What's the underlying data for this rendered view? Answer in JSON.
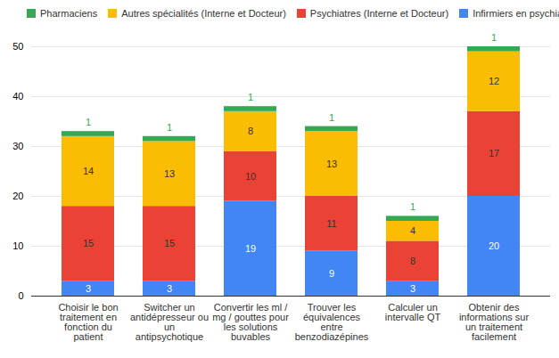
{
  "chart_data": {
    "type": "bar",
    "stacked": true,
    "data_labels": true,
    "grid": true,
    "legend": "top",
    "categories": [
      "Choisir le bon traitement en fonction du patient",
      "Switcher un antidépresseur ou un antipsychotique",
      "Convertir les ml / mg / gouttes pour les solutions buvables",
      "Trouver les équivalences entre benzodiazépines",
      "Calculer un intervalle QT",
      "Obtenir des informations sur un traitement facilement"
    ],
    "series": [
      {
        "name": "Infirmiers en psychiatrie",
        "color": "#4285f4",
        "values": [
          3,
          3,
          19,
          9,
          3,
          20
        ]
      },
      {
        "name": "Psychiatres (Interne et Docteur)",
        "color": "#ea4335",
        "values": [
          15,
          15,
          10,
          11,
          8,
          17
        ]
      },
      {
        "name": "Autres spécialités (Interne et Docteur)",
        "color": "#fbbc04",
        "values": [
          14,
          13,
          8,
          13,
          4,
          12
        ]
      },
      {
        "name": "Pharmaciens",
        "color": "#34a853",
        "values": [
          1,
          1,
          1,
          1,
          1,
          1
        ]
      }
    ],
    "ylim": [
      0,
      50
    ],
    "yticks": [
      0,
      10,
      20,
      30,
      40,
      50
    ]
  }
}
